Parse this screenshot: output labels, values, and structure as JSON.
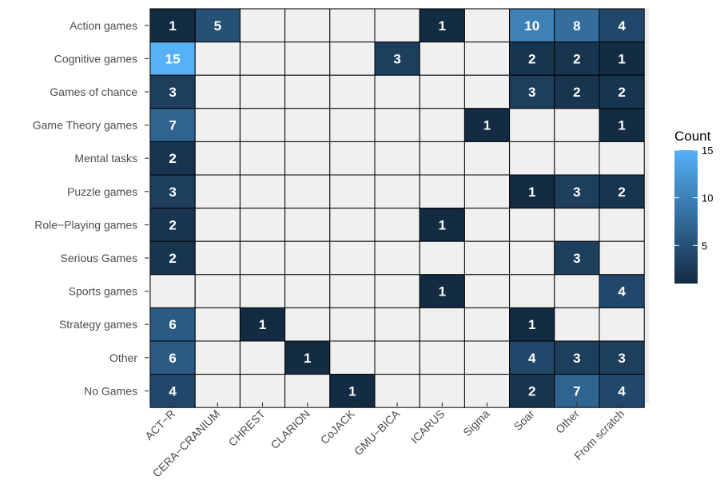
{
  "chart_data": {
    "type": "heatmap",
    "title": "",
    "xlabel": "",
    "ylabel": "",
    "x_categories": [
      "ACT−R",
      "CERA−CRANIUM",
      "CHREST",
      "CLARION",
      "CoJACK",
      "GMU−BICA",
      "ICARUS",
      "Sigma",
      "Soar",
      "Other",
      "From scratch"
    ],
    "y_categories": [
      "Action games",
      "Cognitive games",
      "Games of chance",
      "Game Theory games",
      "Mental tasks",
      "Puzzle games",
      "Role−Playing games",
      "Serious Games",
      "Sports games",
      "Strategy games",
      "Other",
      "No Games"
    ],
    "values": [
      [
        1,
        5,
        null,
        null,
        null,
        null,
        1,
        null,
        10,
        8,
        4
      ],
      [
        15,
        null,
        null,
        null,
        null,
        3,
        null,
        null,
        2,
        2,
        1
      ],
      [
        3,
        null,
        null,
        null,
        null,
        null,
        null,
        null,
        3,
        2,
        2
      ],
      [
        7,
        null,
        null,
        null,
        null,
        null,
        null,
        1,
        null,
        null,
        1
      ],
      [
        2,
        null,
        null,
        null,
        null,
        null,
        null,
        null,
        null,
        null,
        null
      ],
      [
        3,
        null,
        null,
        null,
        null,
        null,
        null,
        null,
        1,
        3,
        2
      ],
      [
        2,
        null,
        null,
        null,
        null,
        null,
        1,
        null,
        null,
        null,
        null
      ],
      [
        2,
        null,
        null,
        null,
        null,
        null,
        null,
        null,
        null,
        3,
        null
      ],
      [
        null,
        null,
        null,
        null,
        null,
        null,
        1,
        null,
        null,
        null,
        4
      ],
      [
        6,
        null,
        1,
        null,
        null,
        null,
        null,
        null,
        1,
        null,
        null
      ],
      [
        6,
        null,
        null,
        1,
        null,
        null,
        null,
        null,
        4,
        3,
        3
      ],
      [
        4,
        null,
        null,
        null,
        1,
        null,
        null,
        null,
        2,
        7,
        4
      ]
    ],
    "legend": {
      "title": "Count",
      "ticks": [
        5,
        10,
        15
      ],
      "range": [
        1,
        15
      ],
      "position": "right"
    },
    "colors": {
      "low": "#132b43",
      "high": "#56b1f7",
      "empty": "#f0f0f0",
      "panel": "#ebebeb",
      "cell_border": "#000000",
      "value_text": "#ffffff"
    }
  }
}
